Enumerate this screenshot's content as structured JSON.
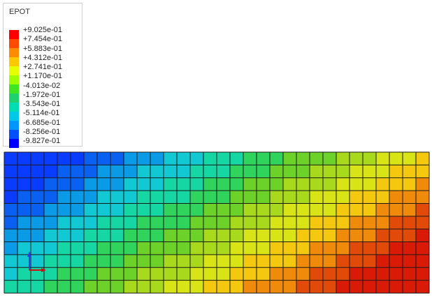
{
  "legend": {
    "title": "EPOT",
    "labels": [
      "+9.025e-01",
      "+7.454e-01",
      "+5.883e-01",
      "+4.312e-01",
      "+2.741e-01",
      "+1.170e-01",
      "-4.013e-02",
      "-1.972e-01",
      "-3.543e-01",
      "-5.114e-01",
      "-6.685e-01",
      "-8.256e-01",
      "-9.827e-01"
    ],
    "colors": [
      "#ff0000",
      "#ff4b00",
      "#ff8c00",
      "#ffc800",
      "#e6ff00",
      "#9eff00",
      "#3fe61f",
      "#1fd26e",
      "#00dcb4",
      "#00c8e6",
      "#0096ff",
      "#0050ff",
      "#0000ff"
    ]
  },
  "mesh": {
    "columns": 32,
    "rows": 11,
    "field_colors": [
      "#0a3cff",
      "#0a60f0",
      "#0a9ae6",
      "#12c8d2",
      "#16d6a4",
      "#30d35c",
      "#6cd22a",
      "#a9d91c",
      "#d8e415",
      "#f3c80f",
      "#f08a0a",
      "#e14a08",
      "#d81a06"
    ]
  },
  "triad": {
    "axis_colors": [
      "#1f3fe0",
      "#d01010"
    ]
  }
}
